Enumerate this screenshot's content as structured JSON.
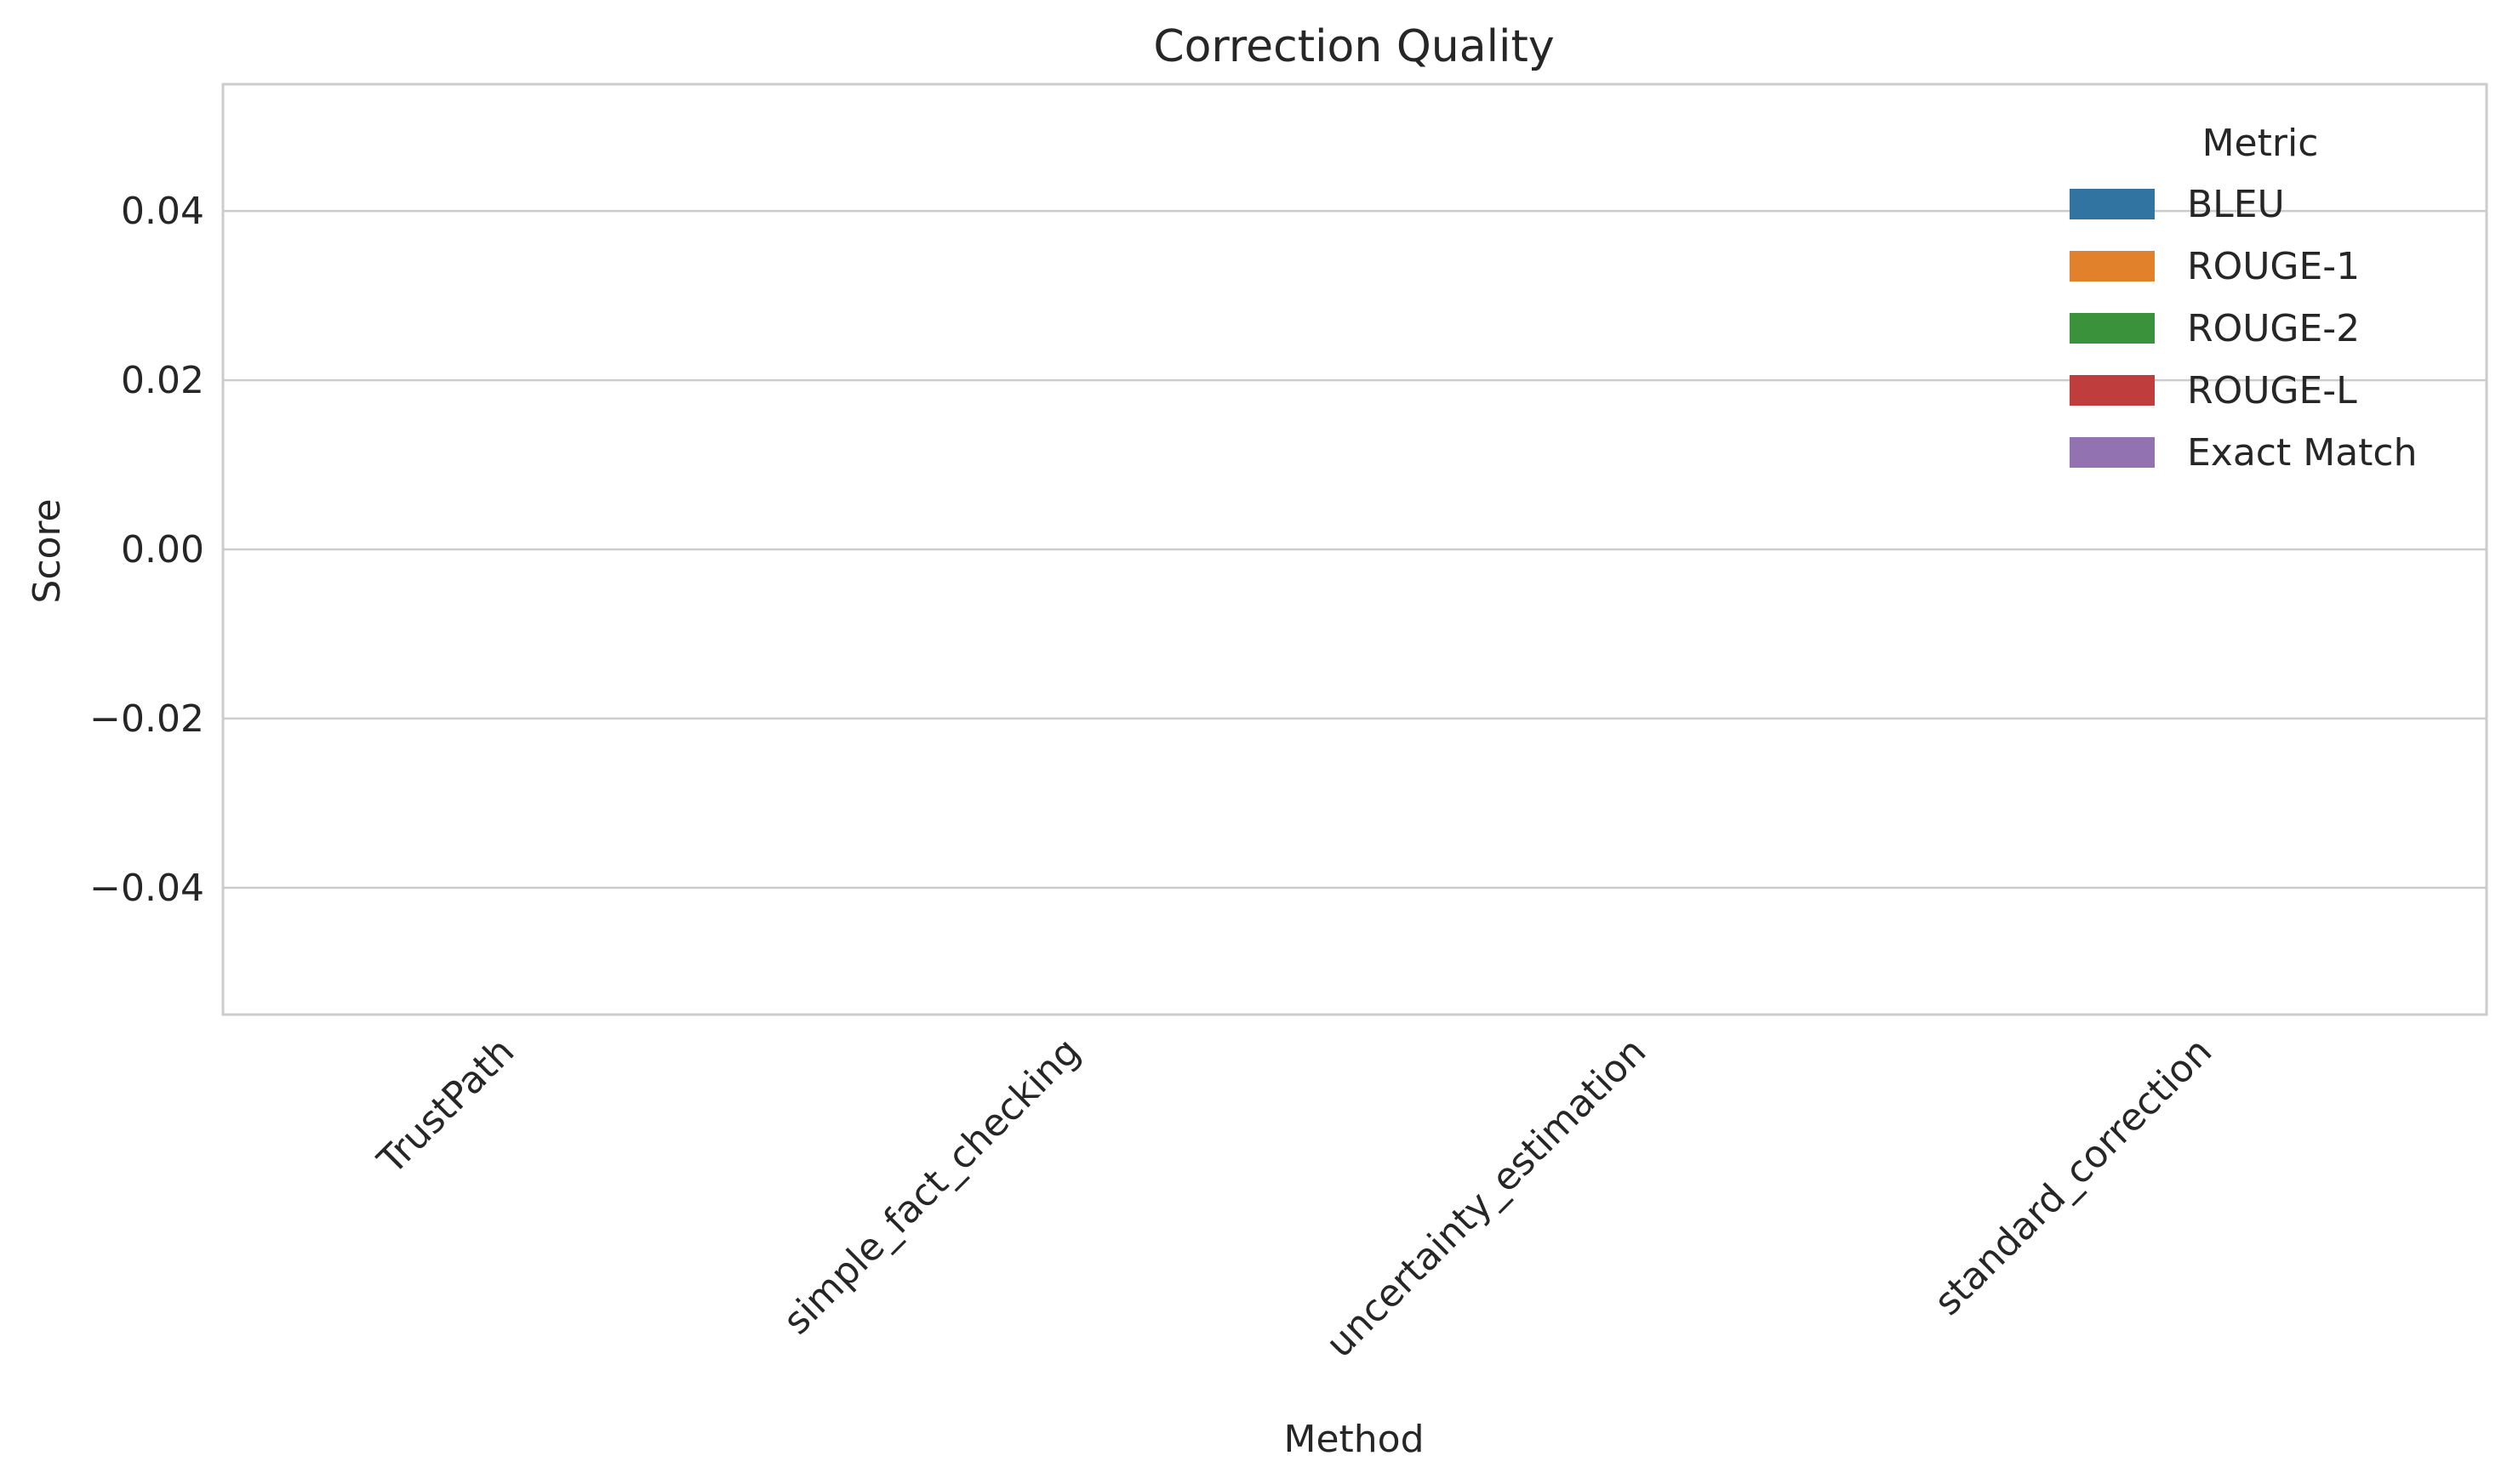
{
  "chart_data": {
    "type": "bar",
    "title": "Correction Quality",
    "xlabel": "Method",
    "ylabel": "Score",
    "categories": [
      "TrustPath",
      "simple_fact_checking",
      "uncertainty_estimation",
      "standard_correction"
    ],
    "ylim": [
      -0.055,
      0.055
    ],
    "yticks": [
      0.04,
      0.02,
      0.0,
      -0.02,
      -0.04
    ],
    "ytick_labels": [
      "0.04",
      "0.02",
      "0.00",
      "−0.02",
      "−0.04"
    ],
    "grid": true,
    "legend": {
      "title": "Metric",
      "placement": "top-right",
      "entries": [
        {
          "name": "BLEU",
          "color": "#3274a1"
        },
        {
          "name": "ROUGE-1",
          "color": "#e1812c"
        },
        {
          "name": "ROUGE-2",
          "color": "#3a923a"
        },
        {
          "name": "ROUGE-L",
          "color": "#c03d3e"
        },
        {
          "name": "Exact Match",
          "color": "#9372b2"
        }
      ]
    },
    "series": [
      {
        "name": "BLEU",
        "values": [
          null,
          null,
          null,
          null
        ]
      },
      {
        "name": "ROUGE-1",
        "values": [
          null,
          null,
          null,
          null
        ]
      },
      {
        "name": "ROUGE-2",
        "values": [
          null,
          null,
          null,
          null
        ]
      },
      {
        "name": "ROUGE-L",
        "values": [
          null,
          null,
          null,
          null
        ]
      },
      {
        "name": "Exact Match",
        "values": [
          null,
          null,
          null,
          null
        ]
      }
    ]
  }
}
